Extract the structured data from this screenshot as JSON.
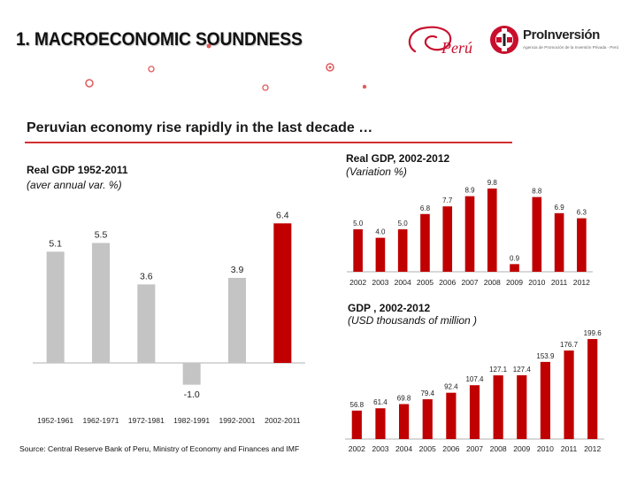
{
  "header": {
    "title": "1. MACROECONOMIC SOUNDNESS",
    "peru_logo_text": "Perú",
    "proinversion_name": "ProInversión",
    "proinversion_tagline": "Agencia de Promoción de la Inversión Privada - Perú"
  },
  "subtitle": "Peruvian economy rise rapidly in the last decade …",
  "source": "Source: Central Reserve Bank of Peru, Ministry of Economy and Finances and IMF",
  "colors": {
    "grey_bar": "#c4c4c4",
    "red_bar": "#c00000",
    "accent_rule": "#d43030"
  },
  "chart_data": [
    {
      "type": "bar",
      "title": "Real GDP 1952-2011",
      "subtitle": "(aver annual var. %)",
      "categories": [
        "1952-1961",
        "1962-1971",
        "1972-1981",
        "1982-1991",
        "1992-2001",
        "2002-2011"
      ],
      "values": [
        5.1,
        5.5,
        3.6,
        -1.0,
        3.9,
        6.4
      ],
      "labels": [
        "5.1",
        "5.5",
        "3.6",
        "-1.0",
        "3.9",
        "6.4"
      ],
      "highlight_index": 5,
      "ylim": [
        -1.3,
        6.9
      ],
      "grid": false
    },
    {
      "type": "bar",
      "title": "Real GDP, 2002-2012",
      "subtitle": "(Variation %)",
      "categories": [
        "2002",
        "2003",
        "2004",
        "2005",
        "2006",
        "2007",
        "2008",
        "2009",
        "2010",
        "2011",
        "2012"
      ],
      "values": [
        5.0,
        4.0,
        5.0,
        6.8,
        7.7,
        8.9,
        9.8,
        0.9,
        8.8,
        6.9,
        6.3
      ],
      "labels": [
        "5.0",
        "4.0",
        "5.0",
        "6.8",
        "7.7",
        "8.9",
        "9.8",
        "0.9",
        "8.8",
        "6.9",
        "6.3"
      ],
      "ylim": [
        0,
        10.5
      ],
      "grid": false
    },
    {
      "type": "bar",
      "title": "GDP , 2002-2012",
      "subtitle": "(USD thousands of million )",
      "categories": [
        "2002",
        "2003",
        "2004",
        "2005",
        "2006",
        "2007",
        "2008",
        "2009",
        "2010",
        "2011",
        "2012"
      ],
      "values": [
        56.8,
        61.4,
        69.8,
        79.4,
        92.4,
        107.4,
        127.1,
        127.4,
        153.9,
        176.7,
        199.6
      ],
      "labels": [
        "56.8",
        "61.4",
        "69.8",
        "79.4",
        "92.4",
        "107.4",
        "127.1",
        "127.4",
        "153.9",
        "176.7",
        "199.6"
      ],
      "ylim": [
        0,
        205
      ],
      "grid": false
    }
  ]
}
